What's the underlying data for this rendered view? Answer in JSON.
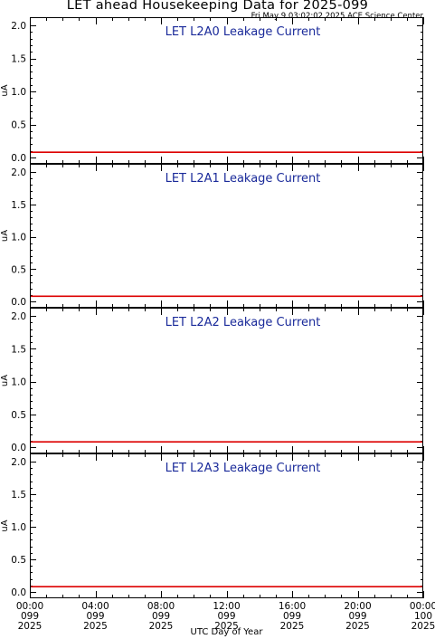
{
  "page": {
    "title": "LET ahead Housekeeping Data for 2025-099",
    "timestamp": "Fri May  9 03:02:02 2025 ACE Science Center"
  },
  "colors": {
    "frame": "#000000",
    "series_line": "#dd0000",
    "panel_title": "#1a2a9a"
  },
  "chart_data": [
    {
      "type": "line",
      "title": "LET L2A0 Leakage Current",
      "ylabel": "uA",
      "ylim": [
        0.0,
        2.0
      ],
      "yticks": [
        "0.0",
        "0.5",
        "1.0",
        "1.5",
        "2.0"
      ],
      "x": [
        "099 00:00",
        "100 00:00"
      ],
      "series": [
        {
          "values": [
            0.08,
            0.08
          ]
        }
      ]
    },
    {
      "type": "line",
      "title": "LET L2A1 Leakage Current",
      "ylabel": "uA",
      "ylim": [
        0.0,
        2.0
      ],
      "yticks": [
        "0.0",
        "0.5",
        "1.0",
        "1.5",
        "2.0"
      ],
      "x": [
        "099 00:00",
        "100 00:00"
      ],
      "series": [
        {
          "values": [
            0.08,
            0.08
          ]
        }
      ]
    },
    {
      "type": "line",
      "title": "LET L2A2 Leakage Current",
      "ylabel": "uA",
      "ylim": [
        0.0,
        2.0
      ],
      "yticks": [
        "0.0",
        "0.5",
        "1.0",
        "1.5",
        "2.0"
      ],
      "x": [
        "099 00:00",
        "100 00:00"
      ],
      "series": [
        {
          "values": [
            0.08,
            0.08
          ]
        }
      ]
    },
    {
      "type": "line",
      "title": "LET L2A3 Leakage Current",
      "ylabel": "uA",
      "ylim": [
        0.0,
        2.0
      ],
      "yticks": [
        "0.0",
        "0.5",
        "1.0",
        "1.5",
        "2.0"
      ],
      "x": [
        "099 00:00",
        "100 00:00"
      ],
      "series": [
        {
          "values": [
            0.08,
            0.08
          ]
        }
      ]
    }
  ],
  "x_axis": {
    "label": "UTC Day of Year",
    "ticks": [
      {
        "time": "00:00",
        "day": "099",
        "year": "2025"
      },
      {
        "time": "04:00",
        "day": "099",
        "year": "2025"
      },
      {
        "time": "08:00",
        "day": "099",
        "year": "2025"
      },
      {
        "time": "12:00",
        "day": "099",
        "year": "2025"
      },
      {
        "time": "16:00",
        "day": "099",
        "year": "2025"
      },
      {
        "time": "20:00",
        "day": "099",
        "year": "2025"
      },
      {
        "time": "00:00",
        "day": "100",
        "year": "2025"
      }
    ]
  }
}
